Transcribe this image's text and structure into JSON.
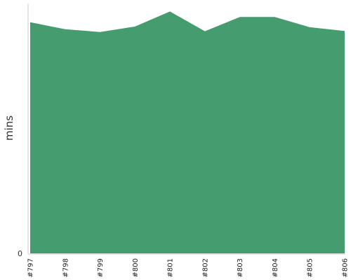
{
  "chart_data": {
    "type": "area",
    "categories": [
      "#797",
      "#798",
      "#799",
      "#800",
      "#801",
      "#802",
      "#803",
      "#804",
      "#805",
      "#806"
    ],
    "series": [
      {
        "values": [
          92.5,
          89.7,
          88.6,
          90.8,
          96.8,
          88.9,
          94.6,
          94.6,
          90.5,
          89.0
        ]
      }
    ],
    "ylabel": "mins",
    "y_ticks": [
      "0"
    ],
    "ylim": [
      0,
      100
    ],
    "grid": false,
    "color": "#459c6f"
  }
}
